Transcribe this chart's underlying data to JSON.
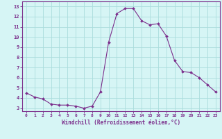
{
  "x": [
    0,
    1,
    2,
    3,
    4,
    5,
    6,
    7,
    8,
    9,
    10,
    11,
    12,
    13,
    14,
    15,
    16,
    17,
    18,
    19,
    20,
    21,
    22,
    23
  ],
  "y": [
    4.5,
    4.1,
    3.9,
    3.4,
    3.3,
    3.3,
    3.2,
    3.0,
    3.2,
    4.6,
    9.5,
    12.3,
    12.8,
    12.8,
    11.6,
    11.2,
    11.3,
    10.1,
    7.7,
    6.6,
    6.5,
    6.0,
    5.3,
    4.6
  ],
  "line_color": "#7b2d8b",
  "marker": "D",
  "marker_size": 2.0,
  "bg_color": "#d6f5f5",
  "grid_color": "#aadddd",
  "xlabel": "Windchill (Refroidissement éolien,°C)",
  "xlabel_color": "#7b2d8b",
  "xtick_labels": [
    "0",
    "1",
    "2",
    "3",
    "4",
    "5",
    "6",
    "7",
    "8",
    "9",
    "10",
    "11",
    "12",
    "13",
    "14",
    "15",
    "16",
    "17",
    "18",
    "19",
    "20",
    "21",
    "22",
    "23"
  ],
  "ytick_labels": [
    "3",
    "4",
    "5",
    "6",
    "7",
    "8",
    "9",
    "10",
    "11",
    "12",
    "13"
  ],
  "ylim": [
    2.7,
    13.5
  ],
  "xlim": [
    -0.5,
    23.5
  ],
  "tick_color": "#7b2d8b",
  "spine_color": "#7b2d8b"
}
